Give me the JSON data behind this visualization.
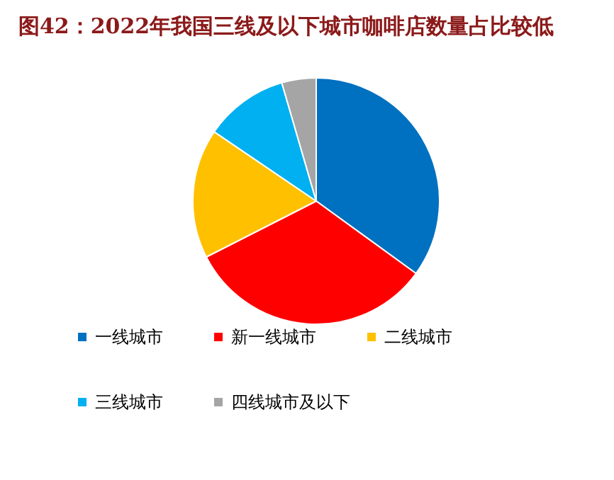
{
  "chart_data": {
    "type": "pie",
    "title": "图42：2022年我国三线及以下城市咖啡店数量占比较低",
    "categories": [
      "一线城市",
      "新一线城市",
      "二线城市",
      "三线城市",
      "四线城市及以下"
    ],
    "values": [
      35,
      32.5,
      17,
      11,
      4.5
    ],
    "colors": [
      "#0070c0",
      "#ff0000",
      "#ffc000",
      "#00b0f0",
      "#a5a5a5"
    ],
    "legend": "bottom"
  }
}
